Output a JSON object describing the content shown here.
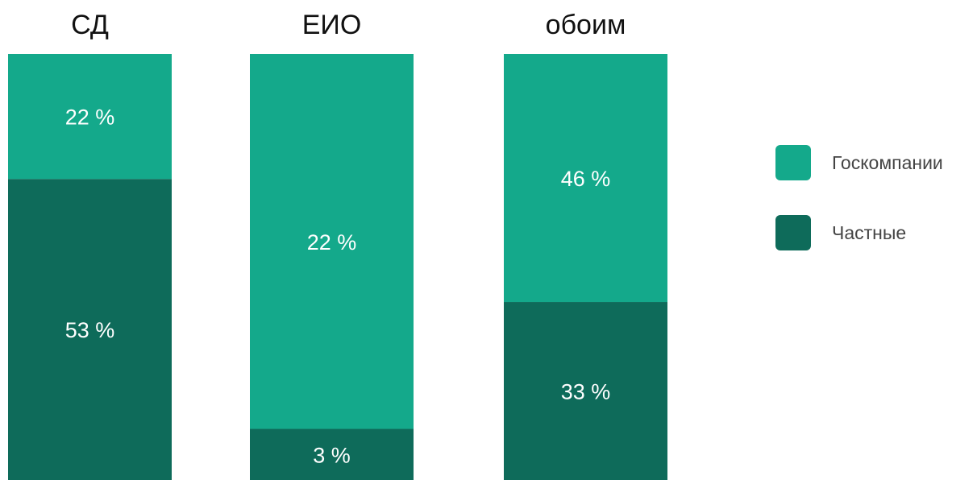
{
  "chart_data": {
    "type": "bar",
    "stacked": true,
    "title": "",
    "categories": [
      "СД",
      "ЕИО",
      "обоим"
    ],
    "series": [
      {
        "name": "Частные",
        "values": [
          53,
          3,
          33
        ],
        "labels": [
          "53 %",
          "3 %",
          "33 %"
        ],
        "color": "#0e6b5a"
      },
      {
        "name": "Госкомпании",
        "values": [
          22,
          22,
          46
        ],
        "labels": [
          "22 %",
          "22 %",
          "46 %"
        ],
        "color": "#14a98b"
      }
    ],
    "legend": {
      "placement": "right",
      "items": [
        {
          "name": "Госкомпании",
          "color": "#14a98b"
        },
        {
          "name": "Частные",
          "color": "#0e6b5a"
        }
      ]
    },
    "axes_visible": false,
    "grid": false
  }
}
